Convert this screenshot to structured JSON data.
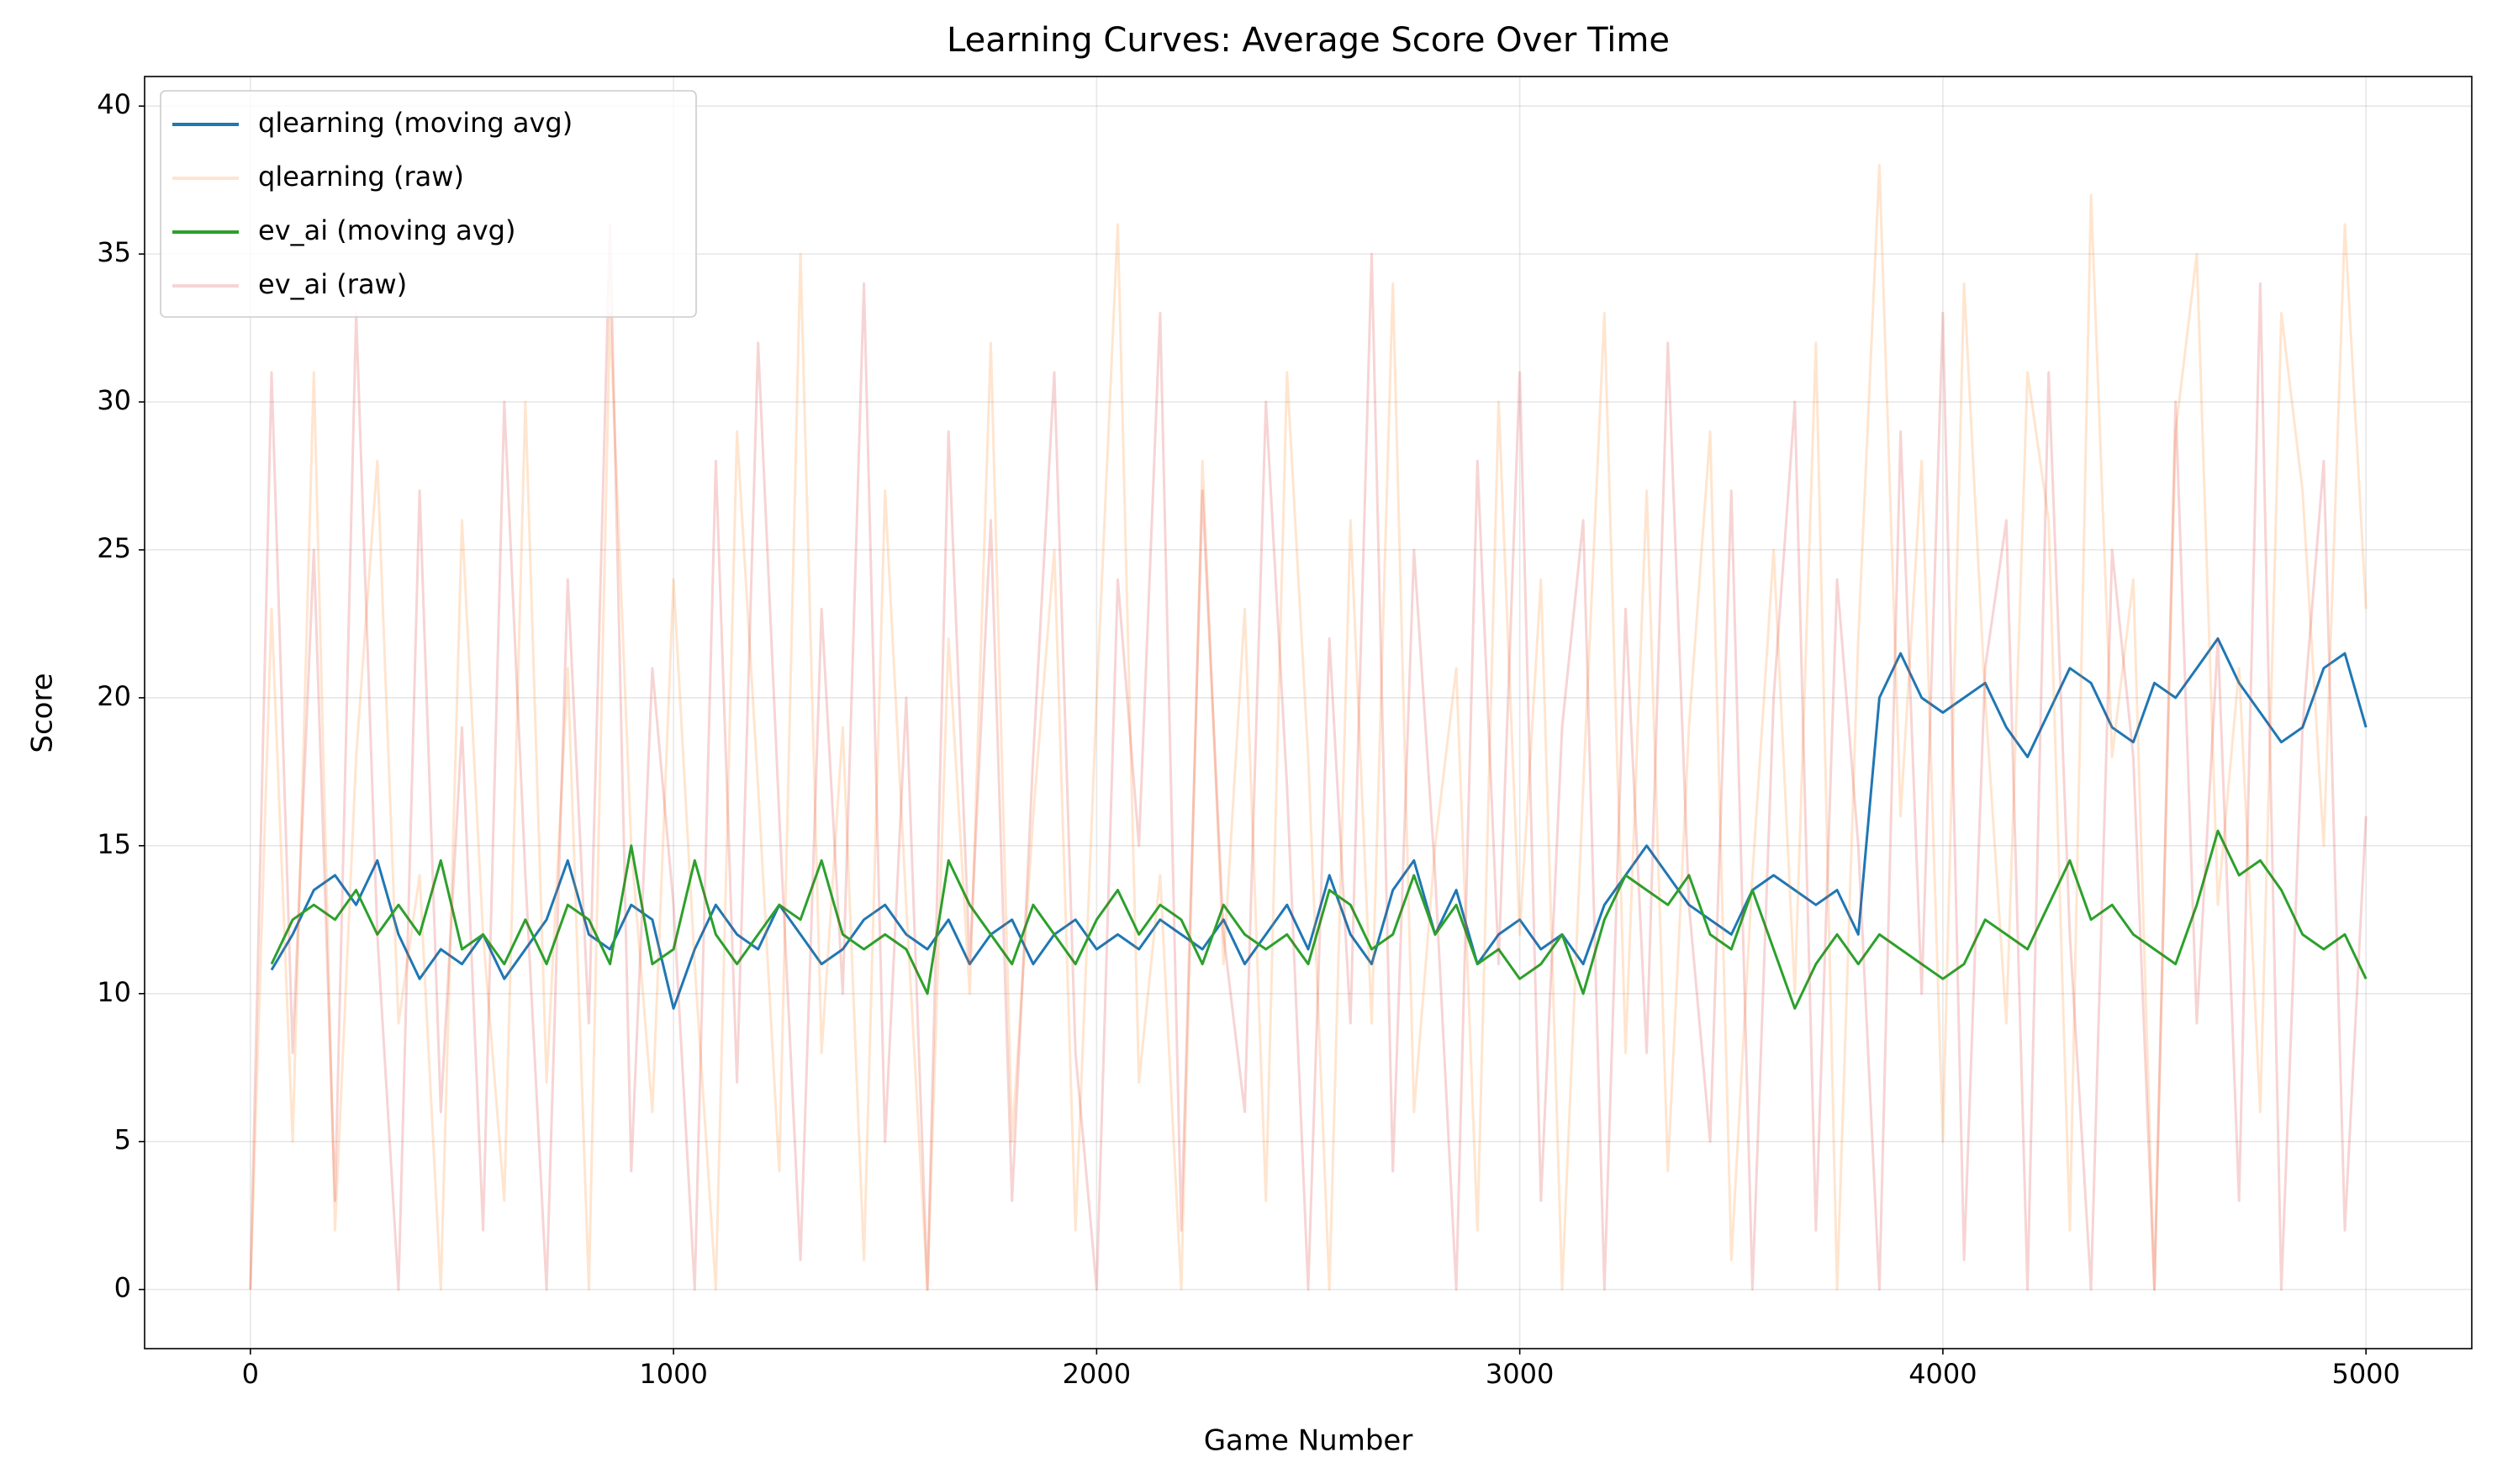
{
  "chart_data": {
    "type": "line",
    "title": "Learning Curves: Average Score Over Time",
    "xlabel": "Game Number",
    "ylabel": "Score",
    "x": [
      0,
      50,
      100,
      150,
      200,
      250,
      300,
      350,
      400,
      450,
      500,
      550,
      600,
      650,
      700,
      750,
      800,
      850,
      900,
      950,
      1000,
      1050,
      1100,
      1150,
      1200,
      1250,
      1300,
      1350,
      1400,
      1450,
      1500,
      1550,
      1600,
      1650,
      1700,
      1750,
      1800,
      1850,
      1900,
      1950,
      2000,
      2050,
      2100,
      2150,
      2200,
      2250,
      2300,
      2350,
      2400,
      2450,
      2500,
      2550,
      2600,
      2650,
      2700,
      2750,
      2800,
      2850,
      2900,
      2950,
      3000,
      3050,
      3100,
      3150,
      3200,
      3250,
      3300,
      3350,
      3400,
      3450,
      3500,
      3550,
      3600,
      3650,
      3700,
      3750,
      3800,
      3850,
      3900,
      3950,
      4000,
      4050,
      4100,
      4150,
      4200,
      4250,
      4300,
      4350,
      4400,
      4450,
      4500,
      4550,
      4600,
      4650,
      4700,
      4750,
      4800,
      4850,
      4900,
      4950,
      5000
    ],
    "series": [
      {
        "name": "qlearning (moving avg)",
        "color": "#1f77b4",
        "alpha": 1,
        "values": [
          null,
          10.8,
          12,
          13.5,
          14,
          13,
          14.5,
          12,
          10.5,
          11.5,
          11,
          12,
          10.5,
          11.5,
          12.5,
          14.5,
          12,
          11.5,
          13,
          12.5,
          9.5,
          11.5,
          13,
          12,
          11.5,
          13,
          12,
          11,
          11.5,
          12.5,
          13,
          12,
          11.5,
          12.5,
          11,
          12,
          12.5,
          11,
          12,
          12.5,
          11.5,
          12,
          11.5,
          12.5,
          12,
          11.5,
          12.5,
          11,
          12,
          13,
          11.5,
          14,
          12,
          11,
          13.5,
          14.5,
          12,
          13.5,
          11,
          12,
          12.5,
          11.5,
          12,
          11,
          13,
          14,
          15,
          14,
          13,
          12.5,
          12,
          13.5,
          14,
          13.5,
          13,
          13.5,
          12,
          20,
          21.5,
          20,
          19.5,
          20,
          20.5,
          19,
          18,
          19.5,
          21,
          20.5,
          19,
          18.5,
          20.5,
          20,
          21,
          22,
          20.5,
          19.5,
          18.5,
          19,
          21,
          21.5,
          19
        ]
      },
      {
        "name": "qlearning (raw)",
        "color": "#ff7f0e",
        "alpha": 0.2,
        "values": [
          0,
          23,
          5,
          31,
          2,
          18,
          28,
          9,
          14,
          0,
          26,
          12,
          3,
          30,
          7,
          21,
          0,
          33,
          15,
          6,
          24,
          11,
          0,
          29,
          17,
          4,
          35,
          8,
          19,
          1,
          27,
          13,
          0,
          22,
          10,
          32,
          5,
          16,
          25,
          2,
          20,
          36,
          7,
          14,
          0,
          28,
          11,
          23,
          3,
          31,
          18,
          0,
          26,
          9,
          34,
          6,
          15,
          21,
          2,
          30,
          12,
          24,
          0,
          17,
          33,
          8,
          27,
          4,
          19,
          29,
          1,
          14,
          25,
          10,
          32,
          0,
          22,
          38,
          16,
          28,
          5,
          34,
          20,
          9,
          31,
          26,
          2,
          37,
          18,
          24,
          0,
          29,
          35,
          13,
          21,
          6,
          33,
          27,
          15,
          36,
          23
        ]
      },
      {
        "name": "ev_ai (moving avg)",
        "color": "#2ca02c",
        "alpha": 1,
        "values": [
          null,
          11,
          12.5,
          13,
          12.5,
          13.5,
          12,
          13,
          12,
          14.5,
          11.5,
          12,
          11,
          12.5,
          11,
          13,
          12.5,
          11,
          15,
          11,
          11.5,
          14.5,
          12,
          11,
          12,
          13,
          12.5,
          14.5,
          12,
          11.5,
          12,
          11.5,
          10,
          14.5,
          13,
          12,
          11,
          13,
          12,
          11,
          12.5,
          13.5,
          12,
          13,
          12.5,
          11,
          13,
          12,
          11.5,
          12,
          11,
          13.5,
          13,
          11.5,
          12,
          14,
          12,
          13,
          11,
          11.5,
          10.5,
          11,
          12,
          10,
          12.5,
          14,
          13.5,
          13,
          14,
          12,
          11.5,
          13.5,
          11.5,
          9.5,
          11,
          12,
          11,
          12,
          11.5,
          11,
          10.5,
          11,
          12.5,
          12,
          11.5,
          13,
          14.5,
          12.5,
          13,
          12,
          11.5,
          11,
          13,
          15.5,
          14,
          14.5,
          13.5,
          12,
          11.5,
          12,
          10.5
        ]
      },
      {
        "name": "ev_ai (raw)",
        "color": "#d62728",
        "alpha": 0.2,
        "values": [
          0,
          31,
          8,
          25,
          3,
          33,
          12,
          0,
          27,
          6,
          19,
          2,
          30,
          14,
          0,
          24,
          9,
          36,
          4,
          21,
          13,
          0,
          28,
          7,
          32,
          16,
          1,
          23,
          10,
          34,
          5,
          20,
          0,
          29,
          11,
          26,
          3,
          18,
          31,
          8,
          0,
          24,
          15,
          33,
          2,
          27,
          12,
          6,
          30,
          17,
          0,
          22,
          9,
          35,
          4,
          25,
          14,
          0,
          28,
          11,
          31,
          3,
          19,
          26,
          0,
          23,
          8,
          32,
          13,
          5,
          27,
          0,
          20,
          30,
          2,
          24,
          15,
          0,
          29,
          10,
          33,
          1,
          21,
          26,
          0,
          31,
          12,
          0,
          25,
          18,
          0,
          30,
          9,
          22,
          3,
          34,
          0,
          19,
          28,
          2,
          16
        ]
      }
    ],
    "xlim": [
      -250,
      5250
    ],
    "ylim": [
      -2,
      41
    ],
    "xticks": [
      0,
      1000,
      2000,
      3000,
      4000,
      5000
    ],
    "yticks": [
      0,
      5,
      10,
      15,
      20,
      25,
      30,
      35,
      40
    ],
    "grid": true,
    "legend": "upper left"
  }
}
